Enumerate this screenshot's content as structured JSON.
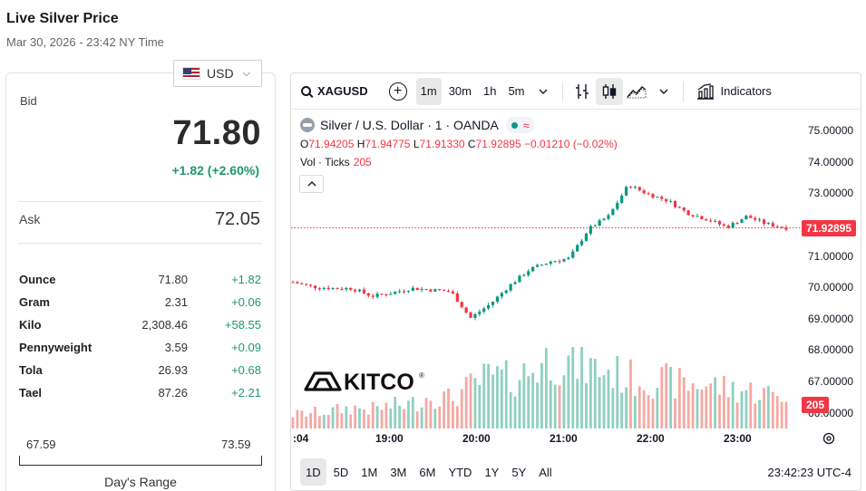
{
  "page": {
    "title": "Live Silver Price",
    "subtitle": "Mar 30, 2026 - 23:42 NY Time"
  },
  "currency": {
    "selected": "USD",
    "flag_icon": "us-flag-icon"
  },
  "quote": {
    "bid_label": "Bid",
    "bid_value": "71.80",
    "bid_change": "+1.82 (+2.60%)",
    "ask_label": "Ask",
    "ask_value": "72.05",
    "positive_color": "#1f9968"
  },
  "units": [
    {
      "name": "Ounce",
      "price": "71.80",
      "change": "+1.82"
    },
    {
      "name": "Gram",
      "price": "2.31",
      "change": "+0.06"
    },
    {
      "name": "Kilo",
      "price": "2,308.46",
      "change": "+58.55"
    },
    {
      "name": "Pennyweight",
      "price": "3.59",
      "change": "+0.09"
    },
    {
      "name": "Tola",
      "price": "26.93",
      "change": "+0.68"
    },
    {
      "name": "Tael",
      "price": "87.26",
      "change": "+2.21"
    }
  ],
  "day_range": {
    "low": "67.59",
    "high": "73.59",
    "label": "Day's Range"
  },
  "toolbar": {
    "symbol": "XAGUSD",
    "intervals": [
      "1m",
      "30m",
      "1h",
      "5m"
    ],
    "active_interval": "1m",
    "indicators_label": "Indicators"
  },
  "legend": {
    "title": "Silver / U.S. Dollar · 1 · OANDA",
    "o_label": "O",
    "o_value": "71.94205",
    "h_label": "H",
    "h_value": "71.94775",
    "l_label": "L",
    "l_value": "71.91330",
    "c_label": "C",
    "c_value": "71.92895",
    "change": "−0.01210 (−0.02%)",
    "vol_label": "Vol · Ticks",
    "vol_value": "205"
  },
  "price_scale": {
    "ticks": [
      "75.00000",
      "74.00000",
      "73.00000",
      "72.00000",
      "71.00000",
      "70.00000",
      "69.00000",
      "68.00000",
      "67.00000",
      "66.00000"
    ],
    "last_price": "71.92895",
    "last_volume": "205"
  },
  "time_axis": {
    "ticks": [
      ":04",
      "19:00",
      "20:00",
      "21:00",
      "22:00",
      "23:00"
    ]
  },
  "bottom_bar": {
    "ranges": [
      "1D",
      "5D",
      "1M",
      "3M",
      "6M",
      "YTD",
      "1Y",
      "5Y",
      "All"
    ],
    "active_range": "1D",
    "clock": "23:42:23 UTC-4"
  },
  "logo_text": "KITCO",
  "colors": {
    "up": "#089981",
    "down": "#f23645",
    "vol_up": "#8fd0c1",
    "vol_down": "#f5a9a4"
  },
  "chart_data": {
    "type": "candlestick",
    "symbol": "XAGUSD",
    "interval": "1m",
    "ylim": [
      65.5,
      75.7
    ],
    "x": [
      "18:04",
      "18:20",
      "18:40",
      "19:00",
      "19:20",
      "19:40",
      "20:00",
      "20:10",
      "20:20",
      "20:30",
      "20:40",
      "20:50",
      "21:00",
      "21:10",
      "21:20",
      "21:30",
      "21:40",
      "21:50",
      "22:00",
      "22:15",
      "22:30",
      "22:45",
      "23:00",
      "23:15",
      "23:30",
      "23:42"
    ],
    "close": [
      70.2,
      70.05,
      70.0,
      70.0,
      69.75,
      69.85,
      70.0,
      69.95,
      69.9,
      69.05,
      69.5,
      70.1,
      70.6,
      70.85,
      70.95,
      71.9,
      72.3,
      73.3,
      73.0,
      72.8,
      72.4,
      72.2,
      71.95,
      72.3,
      72.05,
      71.93
    ],
    "volume": [
      40,
      45,
      50,
      60,
      55,
      65,
      70,
      95,
      85,
      120,
      150,
      140,
      165,
      200,
      190,
      175,
      165,
      145,
      140,
      135,
      125,
      130,
      115,
      110,
      100,
      95
    ]
  }
}
